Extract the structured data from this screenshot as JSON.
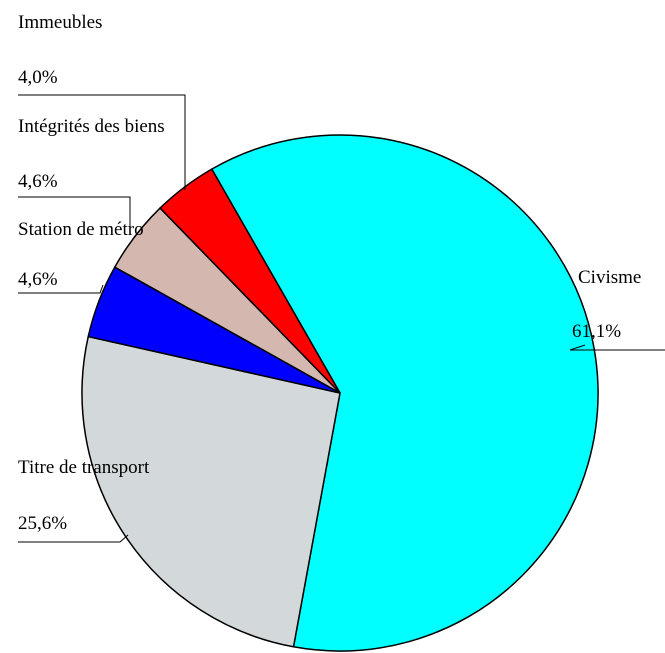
{
  "chart_data": {
    "type": "pie",
    "categories": [
      "Civisme",
      "Titre de transport",
      "Station de métro",
      "Intégrités des biens",
      "Immeubles"
    ],
    "values": [
      61.1,
      25.6,
      4.6,
      4.6,
      4.0
    ],
    "value_labels": [
      "61,1%",
      "25,6%",
      "4,6%",
      "4,6%",
      "4,0%"
    ],
    "colors": [
      "#00ffff",
      "#d3d8db",
      "#0000ff",
      "#d4b8b0",
      "#ff0000"
    ]
  }
}
